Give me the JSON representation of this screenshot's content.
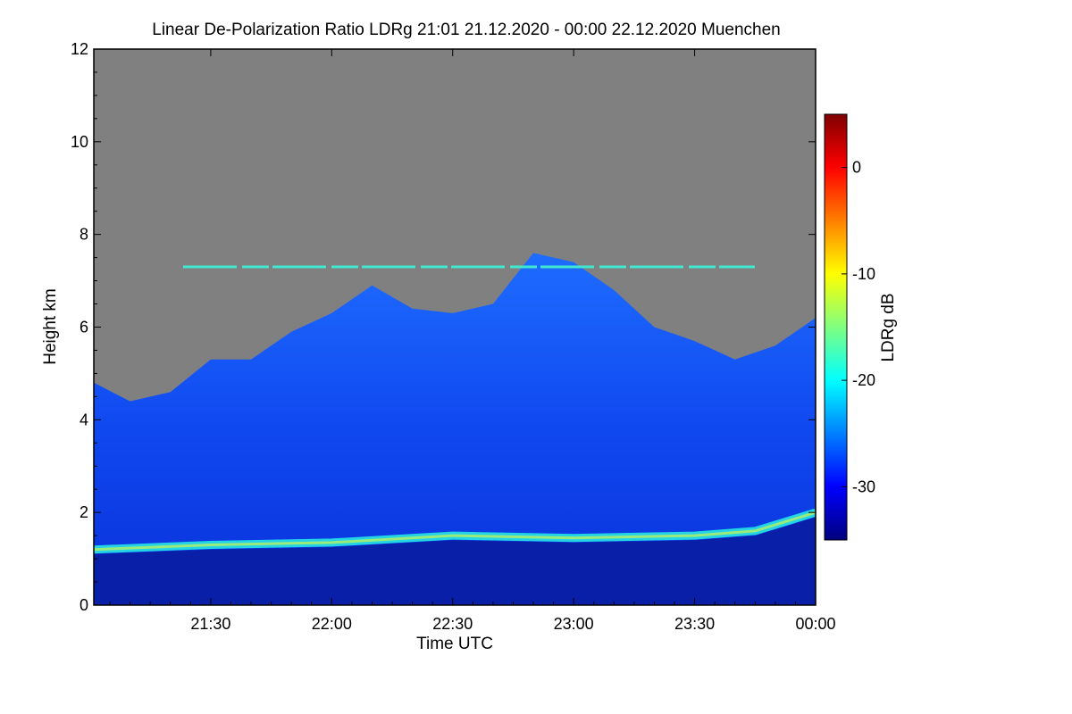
{
  "chart_data": {
    "type": "heatmap",
    "title": "Linear De-Polarization Ratio LDRg   21:01 21.12.2020 - 00:00 22.12.2020 Muenchen",
    "xlabel": "Time UTC",
    "ylabel": "Height km",
    "x_range": [
      "21:01",
      "00:00"
    ],
    "x_ticks": [
      "21:30",
      "22:00",
      "22:30",
      "23:00",
      "23:30",
      "00:00"
    ],
    "y_range": [
      0,
      12
    ],
    "y_ticks": [
      "0",
      "2",
      "4",
      "6",
      "8",
      "10",
      "12"
    ],
    "colorbar": {
      "label": "LDRg dB",
      "range": [
        -35,
        5
      ],
      "ticks": [
        "0",
        "-10",
        "-20",
        "-30"
      ],
      "colormap": "jet"
    },
    "background_color": "#808080",
    "features": {
      "cloud_top_km": [
        {
          "time": "21:01",
          "height": 4.8
        },
        {
          "time": "21:10",
          "height": 4.4
        },
        {
          "time": "21:20",
          "height": 4.6
        },
        {
          "time": "21:30",
          "height": 5.3
        },
        {
          "time": "21:40",
          "height": 5.3
        },
        {
          "time": "21:50",
          "height": 5.9
        },
        {
          "time": "22:00",
          "height": 6.3
        },
        {
          "time": "22:10",
          "height": 6.9
        },
        {
          "time": "22:20",
          "height": 6.4
        },
        {
          "time": "22:30",
          "height": 6.3
        },
        {
          "time": "22:40",
          "height": 6.5
        },
        {
          "time": "22:50",
          "height": 7.6
        },
        {
          "time": "23:00",
          "height": 7.4
        },
        {
          "time": "23:10",
          "height": 6.8
        },
        {
          "time": "23:20",
          "height": 6.0
        },
        {
          "time": "23:30",
          "height": 5.7
        },
        {
          "time": "23:40",
          "height": 5.3
        },
        {
          "time": "23:50",
          "height": 5.6
        },
        {
          "time": "00:00",
          "height": 6.2
        }
      ],
      "boundary_layer_top_km": [
        {
          "time": "21:01",
          "height": 1.2
        },
        {
          "time": "21:30",
          "height": 1.3
        },
        {
          "time": "22:00",
          "height": 1.35
        },
        {
          "time": "22:30",
          "height": 1.5
        },
        {
          "time": "23:00",
          "height": 1.45
        },
        {
          "time": "23:30",
          "height": 1.5
        },
        {
          "time": "23:45",
          "height": 1.6
        },
        {
          "time": "00:00",
          "height": 2.0
        }
      ],
      "thin_layer_km": 7.3
    }
  }
}
